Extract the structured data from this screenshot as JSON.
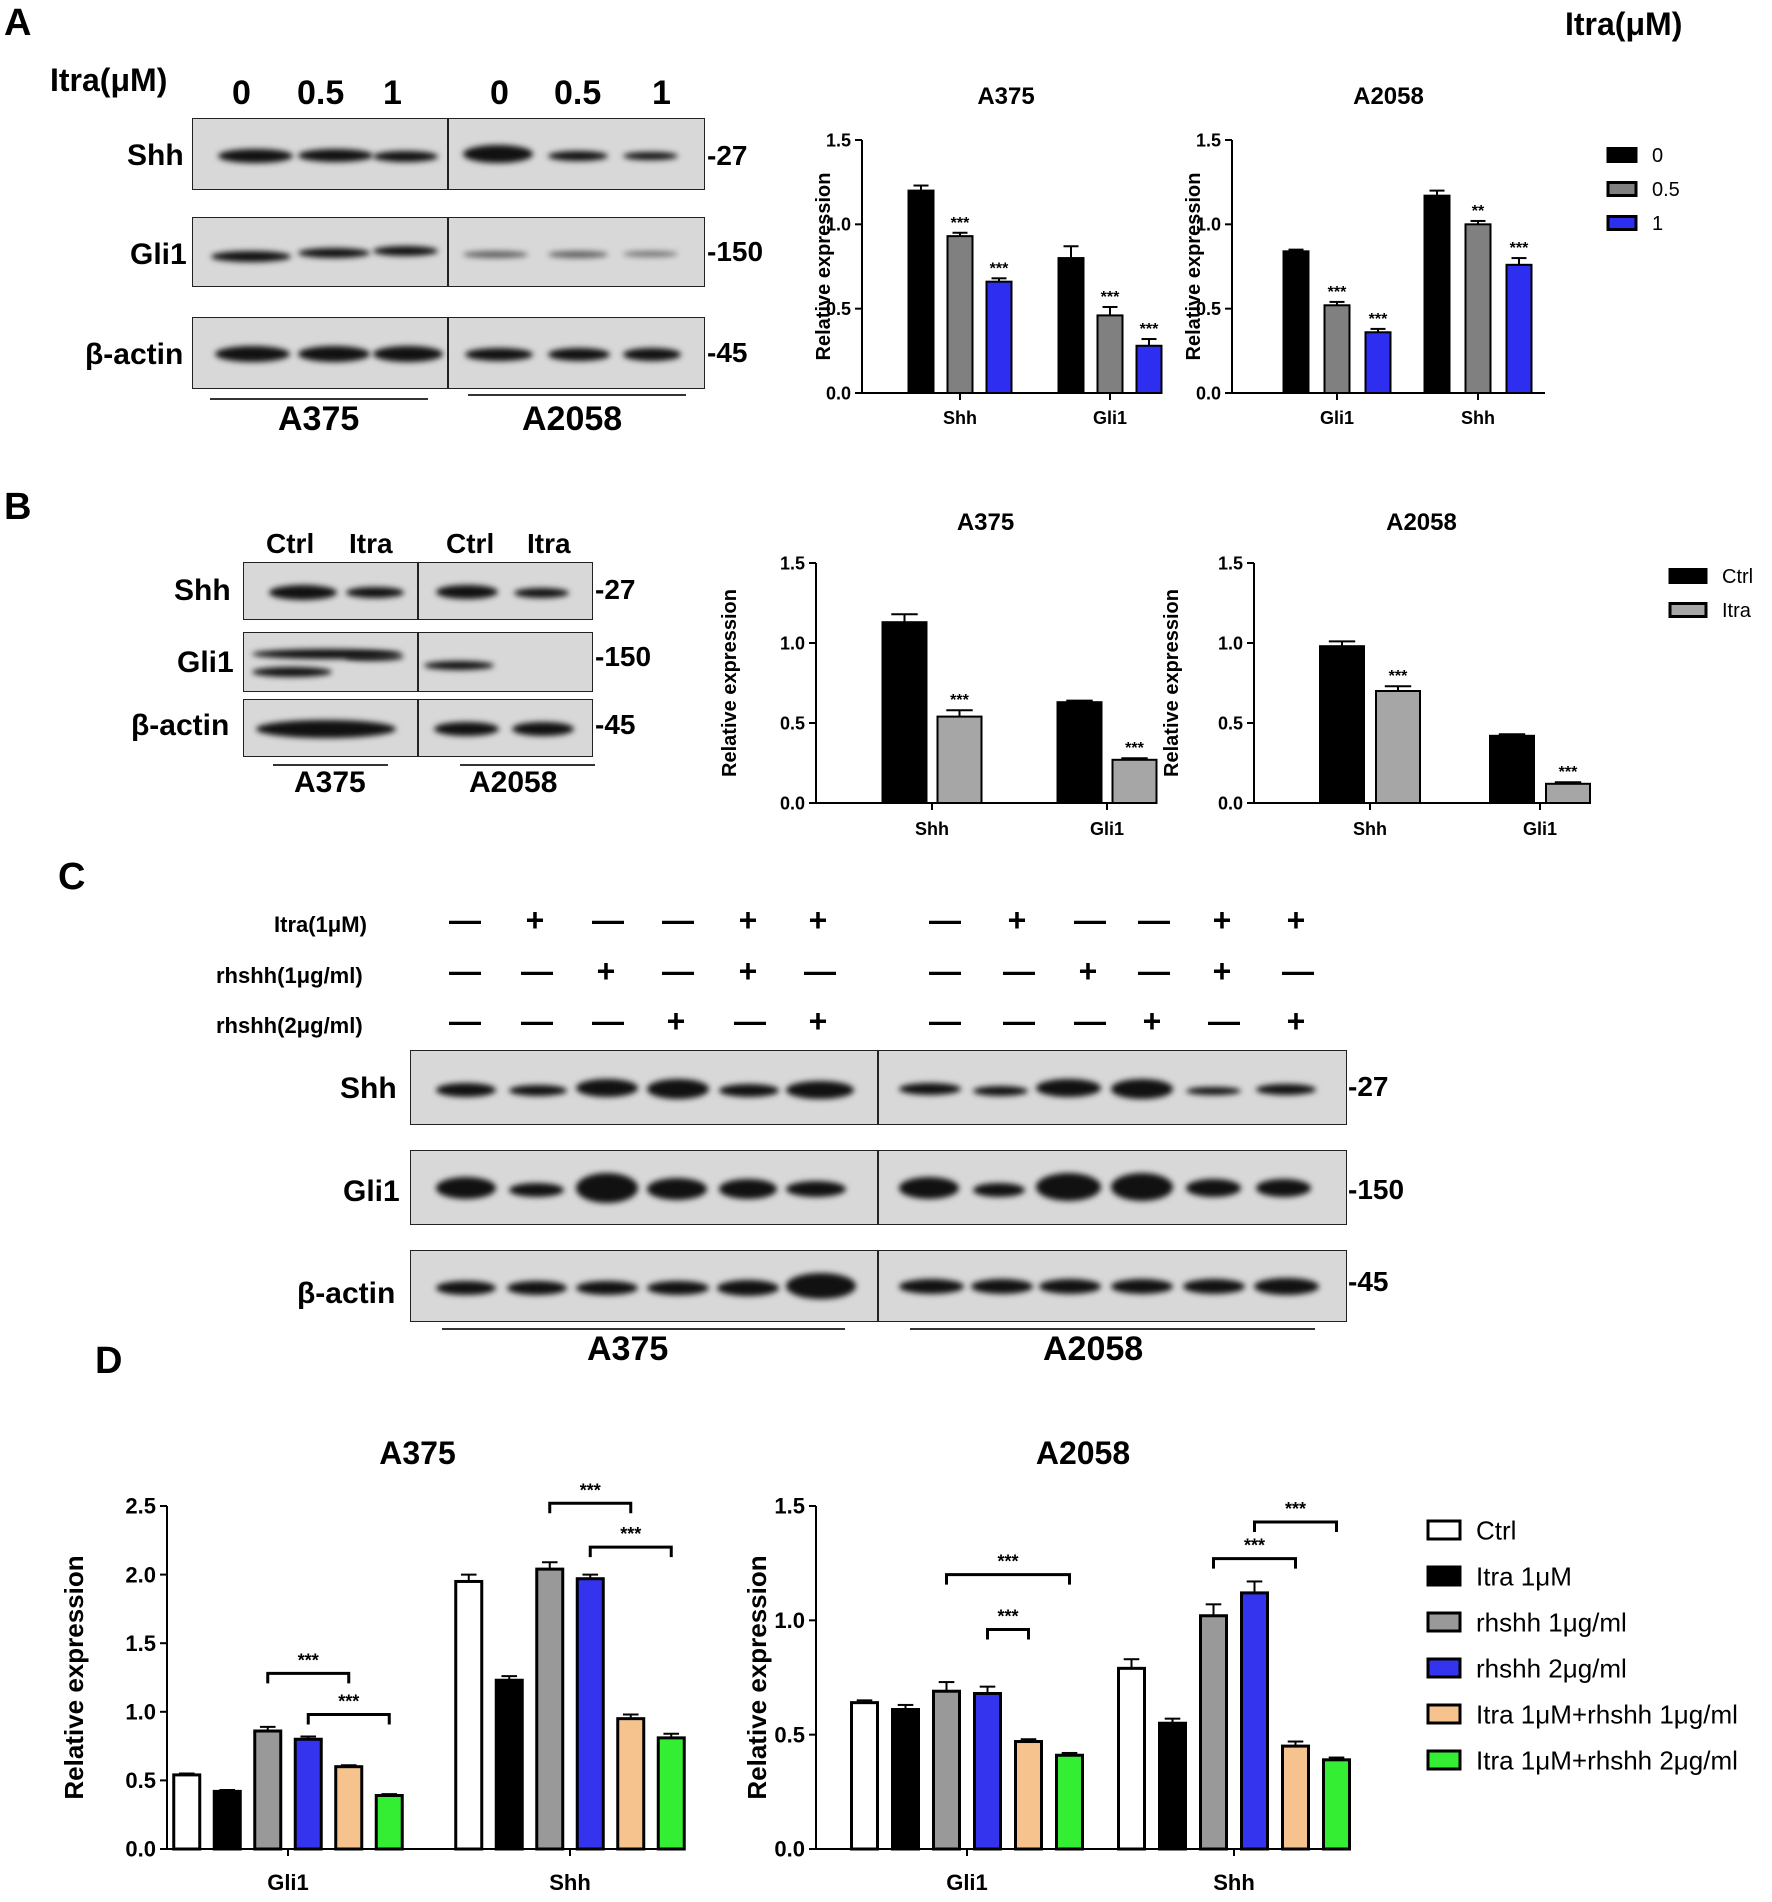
{
  "panels": {
    "A": {
      "label": "A",
      "corner_label": "Itra(μM)",
      "blot": {
        "dose_title": "Itra(μM)",
        "lanes": [
          "0",
          "0.5",
          "1",
          "0",
          "0.5",
          "1"
        ],
        "rows": [
          "Shh",
          "Gli1",
          "β-actin"
        ],
        "markers": [
          "-27",
          "-150",
          "-45"
        ],
        "groups": [
          "A375",
          "A2058"
        ]
      }
    },
    "B": {
      "label": "B",
      "blot": {
        "lanes": [
          "Ctrl",
          "Itra",
          "Ctrl",
          "Itra"
        ],
        "rows": [
          "Shh",
          "Gli1",
          "β-actin"
        ],
        "markers": [
          "-27",
          "-150",
          "-45"
        ],
        "groups": [
          "A375",
          "A2058"
        ]
      }
    },
    "C": {
      "label": "C",
      "treatments": [
        {
          "name": "Itra(1μM)",
          "signs": [
            "—",
            "+",
            "—",
            "—",
            "+",
            "+",
            "—",
            "+",
            "—",
            "—",
            "+",
            "+"
          ]
        },
        {
          "name": "rhshh(1μg/ml)",
          "signs": [
            "—",
            "—",
            "+",
            "—",
            "+",
            "—",
            "—",
            "—",
            "+",
            "—",
            "+",
            "—"
          ]
        },
        {
          "name": "rhshh(2μg/ml)",
          "signs": [
            "—",
            "—",
            "—",
            "+",
            "—",
            "+",
            "—",
            "—",
            "—",
            "+",
            "—",
            "+"
          ]
        }
      ],
      "rows": [
        "Shh",
        "Gli1",
        "β-actin"
      ],
      "markers": [
        "-27",
        "-150",
        "-45"
      ],
      "groups": [
        "A375",
        "A2058"
      ]
    },
    "D": {
      "label": "D"
    }
  },
  "chart_data": [
    {
      "id": "A_A375",
      "type": "bar",
      "title": "A375",
      "ylabel": "Relative expression",
      "categories": [
        "Shh",
        "Gli1"
      ],
      "ylim": [
        0,
        1.5
      ],
      "yticks": [
        "0.0",
        "0.5",
        "1.0",
        "1.5"
      ],
      "series": [
        {
          "name": "0",
          "color": "#000000",
          "values": [
            1.2,
            0.8
          ],
          "errors": [
            0.03,
            0.07
          ],
          "sig": [
            "",
            ""
          ]
        },
        {
          "name": "0.5",
          "color": "#808080",
          "values": [
            0.93,
            0.46
          ],
          "errors": [
            0.02,
            0.05
          ],
          "sig": [
            "***",
            "***"
          ]
        },
        {
          "name": "1",
          "color": "#2e2ef0",
          "values": [
            0.66,
            0.28
          ],
          "errors": [
            0.02,
            0.04
          ],
          "sig": [
            "***",
            "***"
          ]
        }
      ]
    },
    {
      "id": "A_A2058",
      "type": "bar",
      "title": "A2058",
      "ylabel": "Relative expression",
      "categories": [
        "Gli1",
        "Shh"
      ],
      "ylim": [
        0,
        1.5
      ],
      "yticks": [
        "0.0",
        "0.5",
        "1.0",
        "1.5"
      ],
      "legend": [
        "0",
        "0.5",
        "1"
      ],
      "series": [
        {
          "name": "0",
          "color": "#000000",
          "values": [
            0.84,
            1.17
          ],
          "errors": [
            0.01,
            0.03
          ],
          "sig": [
            "",
            ""
          ]
        },
        {
          "name": "0.5",
          "color": "#808080",
          "values": [
            0.52,
            1.0
          ],
          "errors": [
            0.02,
            0.02
          ],
          "sig": [
            "***",
            "**"
          ]
        },
        {
          "name": "1",
          "color": "#2e2ef0",
          "values": [
            0.36,
            0.76
          ],
          "errors": [
            0.02,
            0.04
          ],
          "sig": [
            "***",
            "***"
          ]
        }
      ]
    },
    {
      "id": "B_A375",
      "type": "bar",
      "title": "A375",
      "ylabel": "Relative expression",
      "categories": [
        "Shh",
        "Gli1"
      ],
      "ylim": [
        0,
        1.5
      ],
      "yticks": [
        "0.0",
        "0.5",
        "1.0",
        "1.5"
      ],
      "series": [
        {
          "name": "Ctrl",
          "color": "#000000",
          "values": [
            1.13,
            0.63
          ],
          "errors": [
            0.05,
            0.01
          ],
          "sig": [
            "",
            ""
          ]
        },
        {
          "name": "Itra",
          "color": "#a6a6a6",
          "values": [
            0.54,
            0.27
          ],
          "errors": [
            0.04,
            0.01
          ],
          "sig": [
            "***",
            "***"
          ]
        }
      ]
    },
    {
      "id": "B_A2058",
      "type": "bar",
      "title": "A2058",
      "ylabel": "Relative expression",
      "categories": [
        "Shh",
        "Gli1"
      ],
      "ylim": [
        0,
        1.5
      ],
      "yticks": [
        "0.0",
        "0.5",
        "1.0",
        "1.5"
      ],
      "legend": [
        "Ctrl",
        "Itra"
      ],
      "series": [
        {
          "name": "Ctrl",
          "color": "#000000",
          "values": [
            0.98,
            0.42
          ],
          "errors": [
            0.03,
            0.01
          ],
          "sig": [
            "",
            ""
          ]
        },
        {
          "name": "Itra",
          "color": "#a6a6a6",
          "values": [
            0.7,
            0.12
          ],
          "errors": [
            0.03,
            0.01
          ],
          "sig": [
            "***",
            "***"
          ]
        }
      ]
    },
    {
      "id": "D_A375",
      "type": "bar",
      "title": "A375",
      "ylabel": "Relative expression",
      "categories": [
        "Gli1",
        "Shh"
      ],
      "ylim": [
        0,
        2.5
      ],
      "yticks": [
        "0.0",
        "0.5",
        "1.0",
        "1.5",
        "2.0",
        "2.5"
      ],
      "series": [
        {
          "name": "Ctrl",
          "color": "#ffffff",
          "values": [
            0.54,
            1.95
          ],
          "errors": [
            0.01,
            0.05
          ]
        },
        {
          "name": "Itra 1μM",
          "color": "#000000",
          "values": [
            0.42,
            1.23
          ],
          "errors": [
            0.01,
            0.03
          ]
        },
        {
          "name": "rhshh 1μg/ml",
          "color": "#999999",
          "values": [
            0.86,
            2.04
          ],
          "errors": [
            0.03,
            0.05
          ]
        },
        {
          "name": "rhshh 2μg/ml",
          "color": "#3434ee",
          "values": [
            0.8,
            1.97
          ],
          "errors": [
            0.02,
            0.03
          ]
        },
        {
          "name": "Itra 1μM+rhshh 1μg/ml",
          "color": "#f6c38f",
          "values": [
            0.6,
            0.95
          ],
          "errors": [
            0.01,
            0.03
          ]
        },
        {
          "name": "Itra 1μM+rhshh 2μg/ml",
          "color": "#33ee33",
          "values": [
            0.39,
            0.81
          ],
          "errors": [
            0.01,
            0.03
          ]
        }
      ],
      "brackets": [
        {
          "cat": 0,
          "from": 2,
          "to": 4,
          "y": 1.28,
          "label": "***"
        },
        {
          "cat": 0,
          "from": 3,
          "to": 5,
          "y": 0.98,
          "label": "***"
        },
        {
          "cat": 1,
          "from": 2,
          "to": 4,
          "y": 2.52,
          "label": "***"
        },
        {
          "cat": 1,
          "from": 3,
          "to": 5,
          "y": 2.2,
          "label": "***"
        }
      ]
    },
    {
      "id": "D_A2058",
      "type": "bar",
      "title": "A2058",
      "ylabel": "Relative expression",
      "categories": [
        "Gli1",
        "Shh"
      ],
      "ylim": [
        0,
        1.5
      ],
      "yticks": [
        "0.0",
        "0.5",
        "1.0",
        "1.5"
      ],
      "legend": [
        "Ctrl",
        "Itra 1μM",
        "rhshh 1μg/ml",
        "rhshh 2μg/ml",
        "Itra 1μM+rhshh 1μg/ml",
        "Itra 1μM+rhshh 2μg/ml"
      ],
      "series": [
        {
          "name": "Ctrl",
          "color": "#ffffff",
          "values": [
            0.64,
            0.79
          ],
          "errors": [
            0.01,
            0.04
          ]
        },
        {
          "name": "Itra 1μM",
          "color": "#000000",
          "values": [
            0.61,
            0.55
          ],
          "errors": [
            0.02,
            0.02
          ]
        },
        {
          "name": "rhshh 1μg/ml",
          "color": "#999999",
          "values": [
            0.69,
            1.02
          ],
          "errors": [
            0.04,
            0.05
          ]
        },
        {
          "name": "rhshh 2μg/ml",
          "color": "#3434ee",
          "values": [
            0.68,
            1.12
          ],
          "errors": [
            0.03,
            0.05
          ]
        },
        {
          "name": "Itra 1μM+rhshh 1μg/ml",
          "color": "#f6c38f",
          "values": [
            0.47,
            0.45
          ],
          "errors": [
            0.01,
            0.02
          ]
        },
        {
          "name": "Itra 1μM+rhshh 2μg/ml",
          "color": "#33ee33",
          "values": [
            0.41,
            0.39
          ],
          "errors": [
            0.01,
            0.01
          ]
        }
      ],
      "brackets": [
        {
          "cat": 0,
          "from": 3,
          "to": 4,
          "y": 0.96,
          "label": "***"
        },
        {
          "cat": 0,
          "from": 2,
          "to": 5,
          "y": 1.2,
          "label": "***"
        },
        {
          "cat": 1,
          "from": 2,
          "to": 4,
          "y": 1.27,
          "label": "***"
        },
        {
          "cat": 1,
          "from": 3,
          "to": 5,
          "y": 1.43,
          "label": "***"
        }
      ]
    }
  ]
}
